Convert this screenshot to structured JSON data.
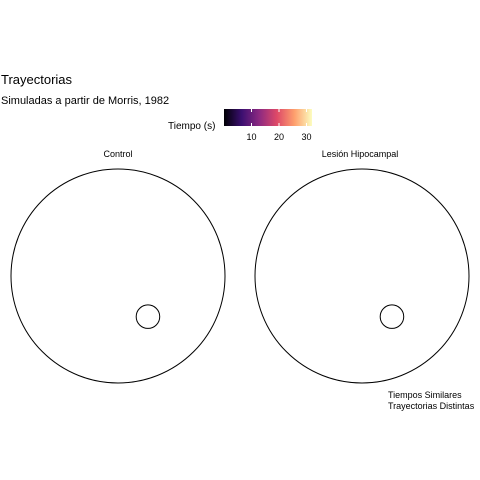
{
  "chart_data": {
    "type": "other",
    "title": "Trayectorias",
    "subtitle": "Simuladas a partir de Morris, 1982",
    "caption_lines": [
      "Tiempos Similares",
      "Trayectorias Distintas"
    ],
    "legend": {
      "title": "Tiempo (s)",
      "type": "colorbar",
      "placement": "top",
      "range": [
        0,
        32
      ],
      "ticks": [
        10,
        20,
        30
      ],
      "colors": [
        "#000004",
        "#3b0f70",
        "#8c2981",
        "#de4968",
        "#fe9f6d",
        "#fcfdbf"
      ]
    },
    "panels": [
      {
        "label": "Control",
        "pool": {
          "cx": 0,
          "cy": 0,
          "r": 1
        },
        "platform": {
          "cx": 0.28,
          "cy": -0.38,
          "r": 0.11
        }
      },
      {
        "label": "Lesión Hipocampal",
        "pool": {
          "cx": 0,
          "cy": 0,
          "r": 1
        },
        "platform": {
          "cx": 0.28,
          "cy": -0.38,
          "r": 0.11
        }
      }
    ]
  }
}
